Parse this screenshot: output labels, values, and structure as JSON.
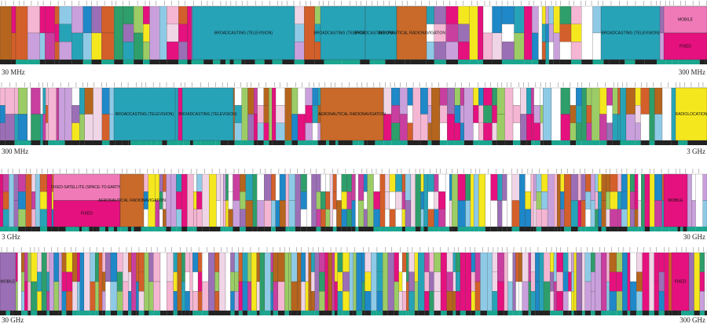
{
  "rows": [
    {
      "start": "30 MHz",
      "end": "300 MHz",
      "bands": [
        "BROADCASTING (TELEVISION)",
        "BROADCASTING (TELEVISION)",
        "BROADCASTING (FM RADIO)",
        "AERONAUTICAL RADIONAVIGATION",
        "BROADCASTING (TELEVISION)",
        "MOBILE",
        "FIXED"
      ]
    },
    {
      "start": "300 MHz",
      "end": "3 GHz",
      "bands": [
        "BROADCASTING (TELEVISION)",
        "BROADCASTING (TELEVISION)",
        "AERONAUTICAL RADIONAVIGATION",
        "RADIOLOCATION"
      ]
    },
    {
      "start": "3 GHz",
      "end": "30 GHz",
      "bands": [
        "FIXED-SATELLITE (SPACE-TO-EARTH)",
        "FIXED",
        "AERONAUTICAL RADIONAVIGATION",
        "MOBILE"
      ]
    },
    {
      "start": "30 GHz",
      "end": "300 GHz",
      "bands": [
        "MOBILE",
        "FIXED"
      ]
    }
  ]
}
